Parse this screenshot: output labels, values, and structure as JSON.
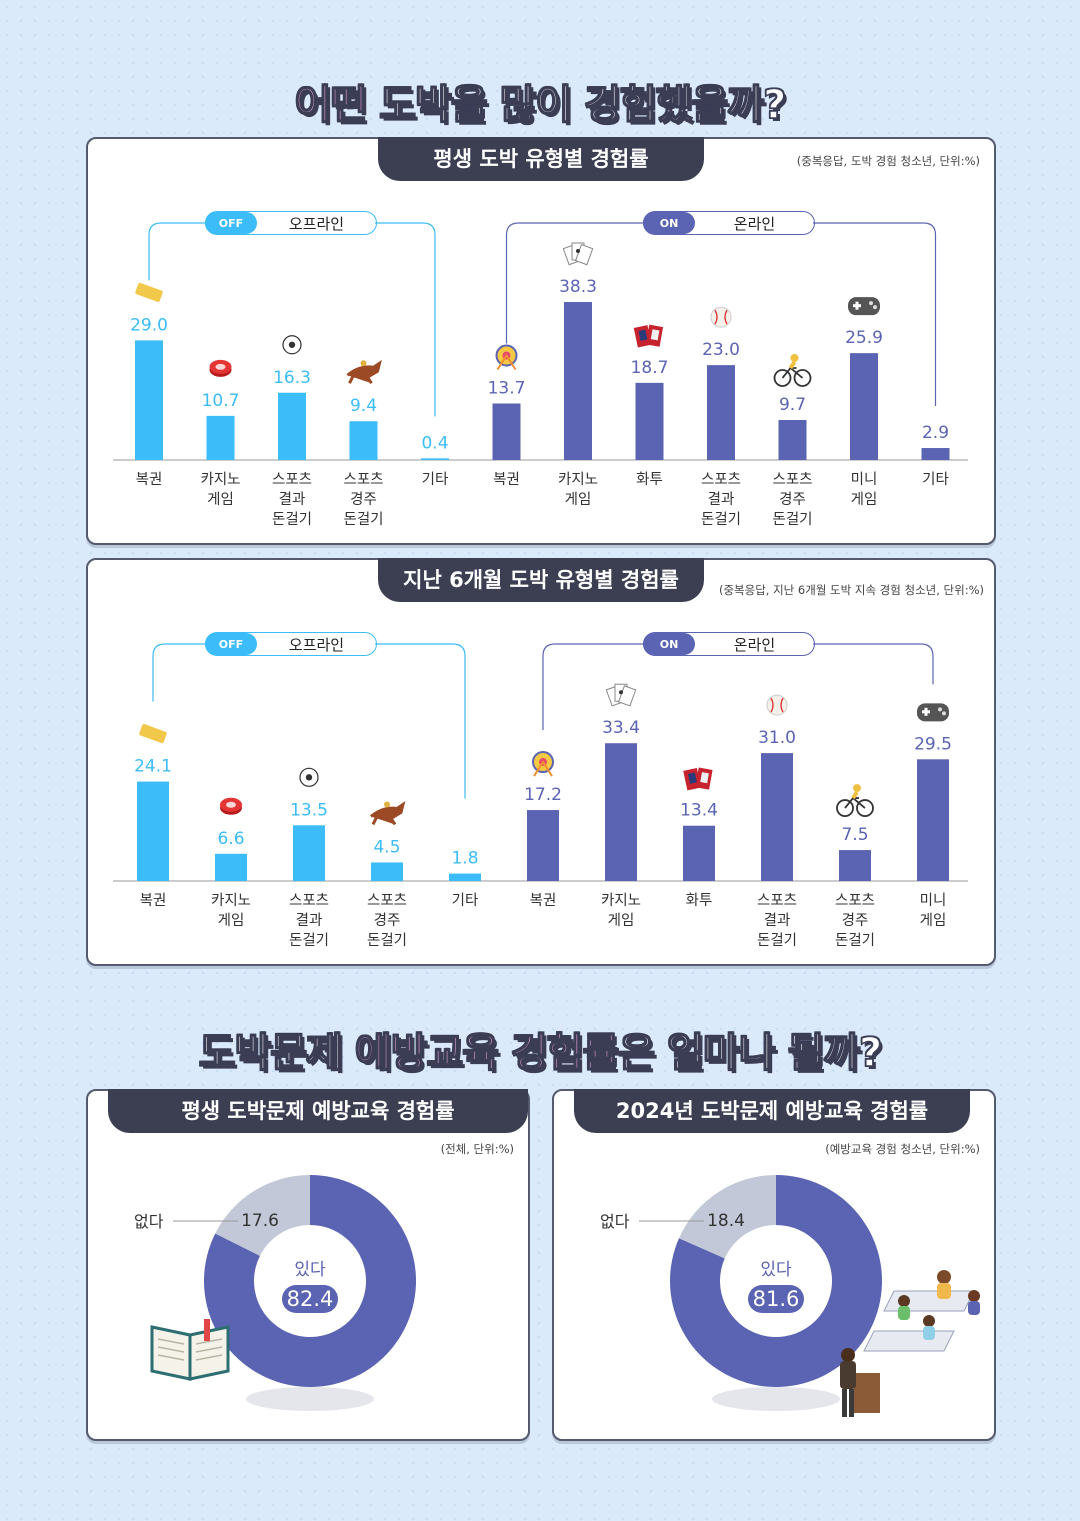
{
  "headline1": {
    "highlight": "어떤",
    "rest": " 도박을 많이 경험했을까?"
  },
  "headline2": {
    "pre": "도박문제 ",
    "highlight": "예방교육 경험률",
    "post": "은 얼마나 될까?"
  },
  "section_labels": {
    "off_tag": "OFF",
    "off_label": "오프라인",
    "on_tag": "ON",
    "on_label": "온라인"
  },
  "colors": {
    "offline": "#3cbcf8",
    "online": "#5b64b2",
    "donut_yes": "#5b64b2",
    "donut_no": "#c2c8d8",
    "tab": "#3c3f52",
    "highlight": "#f7a9e6"
  },
  "chart_data": [
    {
      "type": "bar",
      "title": "평생 도박 유형별 경험률",
      "note": "(중복응답, 도박 경험 청소년, 단위:%)",
      "categories": [
        "복권",
        "카지노\n게임",
        "스포츠\n결과\n돈걸기",
        "스포츠\n경주\n돈걸기",
        "기타",
        "복권",
        "카지노\n게임",
        "화투",
        "스포츠\n결과\n돈걸기",
        "스포츠\n경주\n돈걸기",
        "미니\n게임",
        "기타"
      ],
      "groups": [
        "offline",
        "offline",
        "offline",
        "offline",
        "offline",
        "online",
        "online",
        "online",
        "online",
        "online",
        "online",
        "online"
      ],
      "icons": [
        "lottery-ticket-icon",
        "casino-chip-icon",
        "soccer-ball-icon",
        "racehorse-icon",
        "",
        "wheel-icon",
        "playing-cards-icon",
        "hwatu-cards-icon",
        "baseball-icon",
        "bicycle-icon",
        "gamepad-icon",
        ""
      ],
      "values": [
        29.0,
        10.7,
        16.3,
        9.4,
        0.4,
        13.7,
        38.3,
        18.7,
        23.0,
        9.7,
        25.9,
        2.9
      ],
      "labels": [
        "29.0",
        "10.7",
        "16.3",
        "9.4",
        "0.4",
        "13.7",
        "38.3",
        "18.7",
        "23.0",
        "9.7",
        "25.9",
        "2.9"
      ],
      "ylim": [
        0,
        40
      ]
    },
    {
      "type": "bar",
      "title": "지난 6개월 도박 유형별 경험률",
      "note": "(중복응답, 지난 6개월 도박 지속 경험 청소년, 단위:%)",
      "categories": [
        "복권",
        "카지노\n게임",
        "스포츠\n결과\n돈걸기",
        "스포츠\n경주\n돈걸기",
        "기타",
        "복권",
        "카지노\n게임",
        "화투",
        "스포츠\n결과\n돈걸기",
        "스포츠\n경주\n돈걸기",
        "미니\n게임"
      ],
      "groups": [
        "offline",
        "offline",
        "offline",
        "offline",
        "offline",
        "online",
        "online",
        "online",
        "online",
        "online",
        "online"
      ],
      "icons": [
        "lottery-ticket-icon",
        "casino-chip-icon",
        "soccer-ball-icon",
        "racehorse-icon",
        "",
        "wheel-icon",
        "playing-cards-icon",
        "hwatu-cards-icon",
        "baseball-icon",
        "bicycle-icon",
        "gamepad-icon"
      ],
      "values": [
        24.1,
        6.6,
        13.5,
        4.5,
        1.8,
        17.2,
        33.4,
        13.4,
        31.0,
        7.5,
        29.5
      ],
      "labels": [
        "24.1",
        "6.6",
        "13.5",
        "4.5",
        "1.8",
        "17.2",
        "33.4",
        "13.4",
        "31.0",
        "7.5",
        "29.5"
      ],
      "ylim": [
        0,
        40
      ]
    },
    {
      "type": "pie",
      "title": "평생 도박문제 예방교육 경험률",
      "note": "(전체, 단위:%)",
      "slices": [
        {
          "name": "있다",
          "value": 82.4,
          "label": "82.4"
        },
        {
          "name": "없다",
          "value": 17.6,
          "label": "17.6"
        }
      ]
    },
    {
      "type": "pie",
      "title": "2024년 도박문제 예방교육 경험률",
      "note": "(예방교육 경험 청소년, 단위:%)",
      "slices": [
        {
          "name": "있다",
          "value": 81.6,
          "label": "81.6"
        },
        {
          "name": "없다",
          "value": 18.4,
          "label": "18.4"
        }
      ]
    }
  ]
}
